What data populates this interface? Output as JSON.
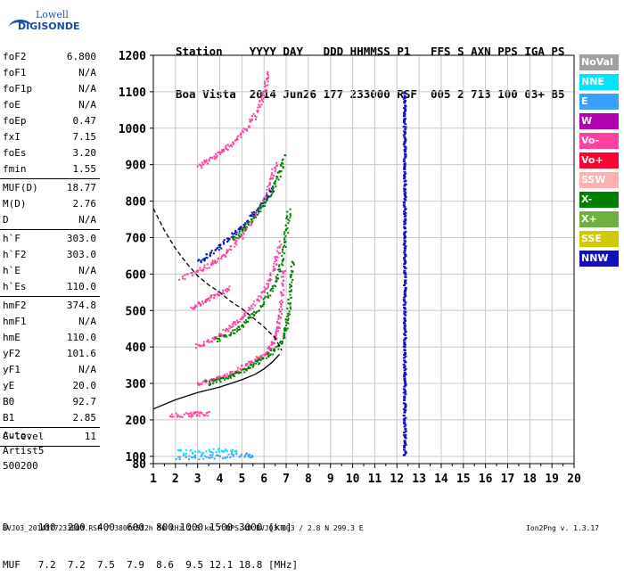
{
  "logo": {
    "line1": "Lowell",
    "line2": "DIGISONDE"
  },
  "header": {
    "line1": "Station    YYYY DAY   DDD HHMMSS P1   FFS S AXN PPS IGA PS",
    "line2": "Boa Vista  2014 Jun26 177 233000 RSF  005 2 713 100 03+ B5"
  },
  "params": [
    {
      "label": "foF2",
      "value": "6.800"
    },
    {
      "label": "foF1",
      "value": "N/A"
    },
    {
      "label": "foF1p",
      "value": "N/A"
    },
    {
      "label": "foE",
      "value": "N/A"
    },
    {
      "label": "foEp",
      "value": "0.47"
    },
    {
      "label": "fxI",
      "value": "7.15"
    },
    {
      "label": "foEs",
      "value": "3.20"
    },
    {
      "label": "fmin",
      "value": "1.55"
    },
    {
      "sep": true
    },
    {
      "label": "MUF(D)",
      "value": "18.77"
    },
    {
      "label": "M(D)",
      "value": "2.76"
    },
    {
      "label": "D",
      "value": "N/A"
    },
    {
      "sep": true
    },
    {
      "label": "h`F",
      "value": "303.0"
    },
    {
      "label": "h`F2",
      "value": "303.0"
    },
    {
      "label": "h`E",
      "value": "N/A"
    },
    {
      "label": "h`Es",
      "value": "110.0"
    },
    {
      "sep": true
    },
    {
      "label": "hmF2",
      "value": "374.8"
    },
    {
      "label": "hmF1",
      "value": "N/A"
    },
    {
      "label": "hmE",
      "value": "110.0"
    },
    {
      "label": "yF2",
      "value": "101.6"
    },
    {
      "label": "yF1",
      "value": "N/A"
    },
    {
      "label": "yE",
      "value": "20.0"
    },
    {
      "label": "B0",
      "value": "92.7"
    },
    {
      "label": "B1",
      "value": "2.85"
    },
    {
      "sep": true
    },
    {
      "label": "C-level",
      "value": "11"
    },
    {
      "sep": true
    }
  ],
  "auto": {
    "line1": "Auto:",
    "line2": "Artist5",
    "line3": "500200"
  },
  "bottom_table": {
    "row1": "D     100  200  400  600  800 1000 1500 3000 [km]",
    "row2": "MUF   7.2  7.2  7.5  7.9  8.6  9.5 12.1 18.8 [MHz]"
  },
  "footer": {
    "info": "BVJ03_2014177233000.RSF / 380fx512h 50 kHz 2.5 km / DPS-4D BVJ03 003 / 2.8 N 299.3 E",
    "version": "Ion2Png v. 1.3.17"
  },
  "legend": [
    {
      "label": "NoVal",
      "color": "#a0a0a0"
    },
    {
      "label": "NNE",
      "color": "#00e5ff"
    },
    {
      "label": "E",
      "color": "#3aa0ff"
    },
    {
      "label": "W",
      "color": "#b000b0"
    },
    {
      "label": "Vo-",
      "color": "#ff40a0"
    },
    {
      "label": "Vo+",
      "color": "#ff0030"
    },
    {
      "label": "SSW",
      "color": "#ffb0b0"
    },
    {
      "label": "X-",
      "color": "#008000"
    },
    {
      "label": "X+",
      "color": "#70b040"
    },
    {
      "label": "SSE",
      "color": "#d0c800"
    },
    {
      "label": "NNW",
      "color": "#1010c0"
    }
  ],
  "chart_data": {
    "type": "scatter",
    "xlim": [
      1,
      20
    ],
    "ylim": [
      80,
      1200
    ],
    "x_ticks": [
      "1",
      "2",
      "3",
      "4",
      "5",
      "6",
      "7",
      "8",
      "9",
      "10",
      "11",
      "12",
      "13",
      "14",
      "15",
      "16",
      "17",
      "18",
      "19",
      "20"
    ],
    "y_ticks": [
      "80",
      "100",
      "200",
      "300",
      "400",
      "500",
      "600",
      "700",
      "800",
      "900",
      "1000",
      "1100",
      "1200"
    ],
    "grid": true,
    "traces": [
      {
        "name": "Vo-",
        "color": "#ff40a0",
        "points": [
          [
            3.0,
            300
          ],
          [
            3.5,
            309
          ],
          [
            4.0,
            318
          ],
          [
            4.5,
            330
          ],
          [
            5.0,
            345
          ],
          [
            5.5,
            362
          ],
          [
            6.0,
            385
          ],
          [
            6.3,
            405
          ],
          [
            6.5,
            430
          ],
          [
            6.6,
            460
          ],
          [
            6.7,
            500
          ],
          [
            6.8,
            560
          ],
          [
            6.85,
            620
          ]
        ]
      },
      {
        "name": "X-",
        "color": "#008000",
        "points": [
          [
            3.4,
            303
          ],
          [
            4.0,
            312
          ],
          [
            4.5,
            323
          ],
          [
            5.0,
            337
          ],
          [
            5.5,
            353
          ],
          [
            6.0,
            372
          ],
          [
            6.5,
            398
          ],
          [
            6.9,
            430
          ],
          [
            7.0,
            470
          ],
          [
            7.1,
            520
          ],
          [
            7.2,
            580
          ],
          [
            7.25,
            640
          ]
        ]
      },
      {
        "name": "Vo-",
        "color": "#ff40a0",
        "points": [
          [
            2.9,
            405
          ],
          [
            3.5,
            418
          ],
          [
            4.0,
            436
          ],
          [
            4.5,
            458
          ],
          [
            5.0,
            485
          ],
          [
            5.5,
            518
          ],
          [
            6.0,
            560
          ],
          [
            6.3,
            596
          ],
          [
            6.5,
            640
          ],
          [
            6.7,
            690
          ]
        ]
      },
      {
        "name": "X-",
        "color": "#008000",
        "points": [
          [
            3.8,
            420
          ],
          [
            4.5,
            440
          ],
          [
            5.0,
            462
          ],
          [
            5.5,
            490
          ],
          [
            6.0,
            528
          ],
          [
            6.4,
            570
          ],
          [
            6.7,
            620
          ],
          [
            6.9,
            680
          ],
          [
            7.0,
            730
          ],
          [
            7.1,
            780
          ]
        ]
      },
      {
        "name": "Vo-",
        "color": "#ff40a0",
        "points": [
          [
            2.2,
            590
          ],
          [
            3.0,
            610
          ],
          [
            3.5,
            625
          ],
          [
            4.0,
            645
          ],
          [
            4.5,
            675
          ],
          [
            5.0,
            710
          ],
          [
            5.5,
            755
          ],
          [
            6.0,
            810
          ],
          [
            6.3,
            860
          ],
          [
            6.5,
            910
          ]
        ]
      },
      {
        "name": "NNW",
        "color": "#1010c0",
        "points": [
          [
            3.0,
            635
          ],
          [
            3.5,
            655
          ],
          [
            4.0,
            680
          ],
          [
            4.5,
            705
          ],
          [
            5.0,
            735
          ],
          [
            5.5,
            768
          ],
          [
            6.0,
            800
          ],
          [
            6.4,
            840
          ]
        ]
      },
      {
        "name": "X-",
        "color": "#008000",
        "points": [
          [
            4.5,
            695
          ],
          [
            5.0,
            720
          ],
          [
            5.5,
            758
          ],
          [
            6.0,
            795
          ],
          [
            6.4,
            840
          ],
          [
            6.7,
            880
          ],
          [
            6.9,
            930
          ]
        ]
      },
      {
        "name": "Vo-",
        "color": "#ff40a0",
        "points": [
          [
            3.0,
            895
          ],
          [
            3.5,
            915
          ],
          [
            4.0,
            935
          ],
          [
            4.5,
            960
          ],
          [
            5.0,
            990
          ],
          [
            5.5,
            1030
          ],
          [
            5.8,
            1070
          ],
          [
            6.0,
            1110
          ],
          [
            6.2,
            1160
          ]
        ]
      },
      {
        "name": "Vo-",
        "color": "#ff40a0",
        "points": [
          [
            2.7,
            510
          ],
          [
            3.2,
            525
          ],
          [
            3.6,
            540
          ],
          [
            4.0,
            550
          ],
          [
            4.5,
            565
          ]
        ]
      },
      {
        "name": "E",
        "color": "#3aa0ff",
        "points": [
          [
            2.0,
            100
          ],
          [
            3.0,
            100
          ],
          [
            4.0,
            102
          ],
          [
            5.0,
            105
          ],
          [
            5.5,
            105
          ]
        ]
      },
      {
        "name": "NNE",
        "color": "#00e5ff",
        "points": [
          [
            2.0,
            115
          ],
          [
            3.0,
            115
          ],
          [
            4.0,
            118
          ],
          [
            4.8,
            118
          ]
        ]
      },
      {
        "name": "Vo-",
        "color": "#ff40a0",
        "points": [
          [
            1.7,
            215
          ],
          [
            2.5,
            216
          ],
          [
            3.0,
            218
          ],
          [
            3.5,
            220
          ]
        ]
      },
      {
        "name": "NNW",
        "color": "#1010c0",
        "points": [
          [
            12.3,
            1100
          ],
          [
            12.3,
            1000
          ],
          [
            12.3,
            900
          ],
          [
            12.3,
            800
          ],
          [
            12.3,
            700
          ],
          [
            12.3,
            600
          ],
          [
            12.3,
            500
          ],
          [
            12.3,
            400
          ],
          [
            12.3,
            300
          ],
          [
            12.3,
            200
          ],
          [
            12.3,
            100
          ]
        ]
      }
    ],
    "profile": {
      "name": "profile",
      "color": "#000000",
      "points": [
        [
          1.0,
          230
        ],
        [
          2.0,
          255
        ],
        [
          3.0,
          275
        ],
        [
          4.0,
          290
        ],
        [
          5.0,
          310
        ],
        [
          5.6,
          325
        ],
        [
          6.0,
          340
        ],
        [
          6.4,
          360
        ],
        [
          6.7,
          380
        ]
      ]
    },
    "scale_height": {
      "name": "scale_height",
      "color": "#000000",
      "dashed": true,
      "points": [
        [
          1.0,
          780
        ],
        [
          1.5,
          720
        ],
        [
          2.0,
          670
        ],
        [
          2.5,
          630
        ],
        [
          3.0,
          595
        ],
        [
          3.5,
          570
        ],
        [
          4.0,
          550
        ],
        [
          4.5,
          525
        ],
        [
          5.0,
          505
        ],
        [
          5.5,
          480
        ],
        [
          6.0,
          455
        ],
        [
          6.5,
          425
        ],
        [
          6.8,
          390
        ]
      ]
    }
  }
}
